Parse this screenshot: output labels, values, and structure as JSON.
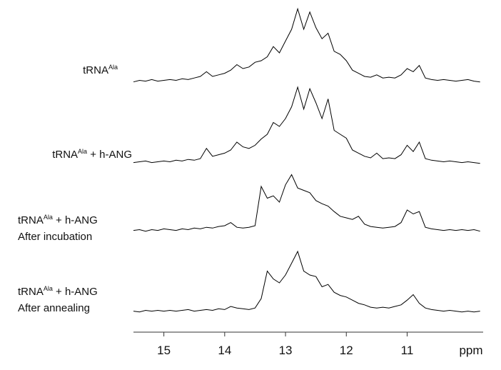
{
  "chart_data": {
    "type": "line",
    "xlabel": "ppm",
    "xlim": [
      15.5,
      9.75
    ],
    "xticks": [
      15,
      14,
      13,
      12,
      11
    ],
    "x": [
      15.5,
      15.4,
      15.3,
      15.2,
      15.1,
      15,
      14.9,
      14.8,
      14.7,
      14.6,
      14.5,
      14.4,
      14.3,
      14.2,
      14.1,
      14,
      13.9,
      13.8,
      13.7,
      13.6,
      13.5,
      13.4,
      13.3,
      13.2,
      13.1,
      13,
      12.9,
      12.8,
      12.7,
      12.6,
      12.5,
      12.4,
      12.3,
      12.2,
      12.1,
      12,
      11.9,
      11.8,
      11.7,
      11.6,
      11.5,
      11.4,
      11.3,
      11.2,
      11.1,
      11,
      10.9,
      10.8,
      10.7,
      10.6,
      10.5,
      10.4,
      10.3,
      10.2,
      10.1,
      10,
      9.9,
      9.8
    ],
    "series": [
      {
        "name_parts": [
          [
            "tRNA",
            "Ala"
          ]
        ],
        "color": "#000000",
        "values": [
          3,
          5,
          4,
          6,
          4,
          5,
          6,
          5,
          7,
          6,
          8,
          10,
          16,
          10,
          12,
          14,
          18,
          25,
          20,
          22,
          28,
          30,
          35,
          48,
          40,
          55,
          70,
          96,
          70,
          92,
          72,
          58,
          65,
          42,
          38,
          30,
          18,
          14,
          10,
          9,
          12,
          8,
          9,
          8,
          12,
          20,
          16,
          24,
          8,
          6,
          5,
          6,
          5,
          4,
          5,
          6,
          4,
          3
        ]
      },
      {
        "name_parts": [
          [
            "tRNA",
            "Ala",
            " + h-ANG"
          ]
        ],
        "color": "#000000",
        "values": [
          4,
          5,
          6,
          4,
          5,
          6,
          5,
          7,
          6,
          8,
          7,
          9,
          22,
          12,
          14,
          16,
          20,
          30,
          24,
          22,
          26,
          34,
          40,
          55,
          50,
          60,
          75,
          100,
          72,
          98,
          80,
          60,
          85,
          45,
          40,
          35,
          20,
          16,
          12,
          10,
          16,
          9,
          10,
          9,
          14,
          26,
          18,
          30,
          9,
          7,
          6,
          5,
          6,
          5,
          4,
          5,
          4,
          3
        ]
      },
      {
        "name_parts": [
          [
            "tRNA",
            "Ala",
            " + h-ANG"
          ],
          [
            "After incubation"
          ]
        ],
        "color": "#000000",
        "values": [
          4,
          5,
          3,
          5,
          4,
          6,
          5,
          4,
          6,
          5,
          7,
          6,
          8,
          7,
          9,
          10,
          14,
          8,
          7,
          8,
          10,
          60,
          45,
          48,
          40,
          62,
          75,
          58,
          55,
          52,
          42,
          38,
          35,
          28,
          22,
          20,
          18,
          22,
          12,
          9,
          8,
          7,
          8,
          9,
          14,
          30,
          25,
          28,
          8,
          6,
          5,
          4,
          5,
          4,
          5,
          4,
          5,
          3
        ]
      },
      {
        "name_parts": [
          [
            "tRNA",
            "Ala",
            " + h-ANG"
          ],
          [
            "After annealing"
          ]
        ],
        "color": "#000000",
        "values": [
          4,
          3,
          5,
          4,
          5,
          4,
          5,
          4,
          5,
          6,
          4,
          5,
          6,
          5,
          7,
          6,
          10,
          8,
          7,
          6,
          8,
          20,
          55,
          45,
          40,
          50,
          65,
          80,
          55,
          50,
          48,
          35,
          38,
          28,
          24,
          22,
          18,
          14,
          12,
          9,
          8,
          9,
          8,
          10,
          12,
          18,
          25,
          14,
          8,
          6,
          5,
          4,
          5,
          4,
          3,
          4,
          3,
          4
        ]
      }
    ]
  }
}
